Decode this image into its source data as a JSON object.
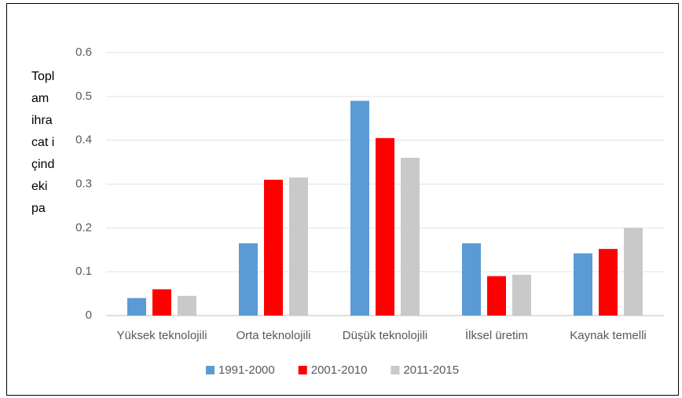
{
  "chart_data": {
    "type": "bar",
    "y_label": "Toplam ihracat içindeki pa",
    "categories": [
      "Yüksek teknolojili",
      "Orta teknolojili",
      "Düşük teknolojili",
      "İlksel üretim",
      "Kaynak temelli"
    ],
    "series": [
      {
        "name": "1991-2000",
        "color": "#5b9bd5",
        "values": [
          0.04,
          0.165,
          0.49,
          0.165,
          0.142
        ]
      },
      {
        "name": "2001-2010",
        "color": "#ff0000",
        "values": [
          0.06,
          0.31,
          0.405,
          0.09,
          0.152
        ]
      },
      {
        "name": "2011-2015",
        "color": "#c9c9c9",
        "values": [
          0.045,
          0.315,
          0.36,
          0.093,
          0.2
        ]
      }
    ],
    "ylim": [
      0,
      0.6
    ],
    "yticks": [
      0,
      0.1,
      0.2,
      0.3,
      0.4,
      0.5,
      0.6
    ],
    "grid": true,
    "legend": "bottom"
  }
}
